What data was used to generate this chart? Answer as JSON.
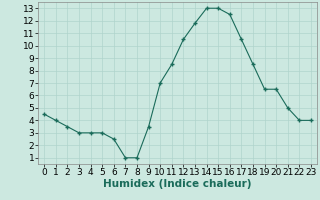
{
  "x": [
    0,
    1,
    2,
    3,
    4,
    5,
    6,
    7,
    8,
    9,
    10,
    11,
    12,
    13,
    14,
    15,
    16,
    17,
    18,
    19,
    20,
    21,
    22,
    23
  ],
  "y": [
    4.5,
    4.0,
    3.5,
    3.0,
    3.0,
    3.0,
    2.5,
    1.0,
    1.0,
    3.5,
    7.0,
    8.5,
    10.5,
    11.8,
    13.0,
    13.0,
    12.5,
    10.5,
    8.5,
    6.5,
    6.5,
    5.0,
    4.0,
    4.0
  ],
  "line_color": "#1a6b5a",
  "marker_color": "#1a6b5a",
  "bg_color": "#cce8e0",
  "grid_color": "#b0d4cc",
  "xlabel": "Humidex (Indice chaleur)",
  "xlim": [
    -0.5,
    23.5
  ],
  "ylim": [
    0.5,
    13.5
  ],
  "yticks": [
    1,
    2,
    3,
    4,
    5,
    6,
    7,
    8,
    9,
    10,
    11,
    12,
    13
  ],
  "xticks": [
    0,
    1,
    2,
    3,
    4,
    5,
    6,
    7,
    8,
    9,
    10,
    11,
    12,
    13,
    14,
    15,
    16,
    17,
    18,
    19,
    20,
    21,
    22,
    23
  ],
  "tick_label_fontsize": 6.5,
  "xlabel_fontsize": 7.5
}
